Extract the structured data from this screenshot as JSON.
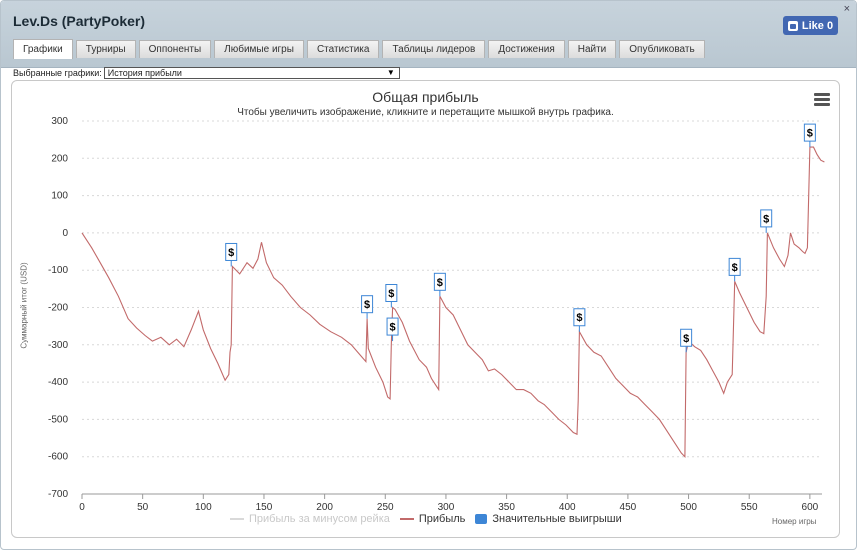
{
  "window": {
    "title": "Lev.Ds (PartyPoker)",
    "close_label": "×",
    "like_label": "Like 0"
  },
  "tabs": [
    {
      "label": "Графики",
      "active": true
    },
    {
      "label": "Турниры"
    },
    {
      "label": "Оппоненты"
    },
    {
      "label": "Любимые игры"
    },
    {
      "label": "Статистика"
    },
    {
      "label": "Таблицы лидеров"
    },
    {
      "label": "Достижения"
    },
    {
      "label": "Найти"
    },
    {
      "label": "Опубликовать"
    }
  ],
  "selector": {
    "label": "Выбранные графики:",
    "value": "История прибыли"
  },
  "chart": {
    "title": "Общая прибыль",
    "subtitle": "Чтобы увеличить изображение, кликните и перетащите мышкой внутрь графика.",
    "ylabel": "Суммарный итог (USD)",
    "xlabel": "Номер игры",
    "legend": [
      {
        "name": "Прибыль за минусом рейка",
        "visible": false
      },
      {
        "name": "Прибыль",
        "visible": true
      },
      {
        "name": "Значительные выигрыши",
        "visible": true
      }
    ],
    "flag_text": "$"
  },
  "chart_data": {
    "type": "line",
    "xlim": [
      0,
      610
    ],
    "ylim": [
      -700,
      300
    ],
    "x_ticks": [
      0,
      50,
      100,
      150,
      200,
      250,
      300,
      350,
      400,
      450,
      500,
      550,
      600
    ],
    "y_ticks": [
      -700,
      -600,
      -500,
      -400,
      -300,
      -200,
      -100,
      0,
      100,
      200,
      300
    ],
    "series": [
      {
        "name": "Прибыль",
        "color": "#c26a6a",
        "points": [
          [
            0,
            0
          ],
          [
            8,
            -40
          ],
          [
            15,
            -80
          ],
          [
            22,
            -120
          ],
          [
            30,
            -170
          ],
          [
            38,
            -230
          ],
          [
            45,
            -255
          ],
          [
            52,
            -275
          ],
          [
            58,
            -290
          ],
          [
            65,
            -280
          ],
          [
            72,
            -300
          ],
          [
            78,
            -285
          ],
          [
            84,
            -305
          ],
          [
            90,
            -260
          ],
          [
            96,
            -210
          ],
          [
            100,
            -260
          ],
          [
            106,
            -310
          ],
          [
            112,
            -350
          ],
          [
            118,
            -395
          ],
          [
            121,
            -380
          ],
          [
            122,
            -320
          ],
          [
            123,
            -300
          ],
          [
            124,
            -90
          ],
          [
            130,
            -110
          ],
          [
            136,
            -80
          ],
          [
            141,
            -95
          ],
          [
            145,
            -70
          ],
          [
            148,
            -25
          ],
          [
            152,
            -80
          ],
          [
            158,
            -120
          ],
          [
            165,
            -140
          ],
          [
            172,
            -170
          ],
          [
            180,
            -200
          ],
          [
            188,
            -220
          ],
          [
            196,
            -245
          ],
          [
            205,
            -265
          ],
          [
            214,
            -280
          ],
          [
            222,
            -300
          ],
          [
            230,
            -330
          ],
          [
            234,
            -345
          ],
          [
            235,
            -230
          ],
          [
            236,
            -310
          ],
          [
            242,
            -360
          ],
          [
            248,
            -400
          ],
          [
            252,
            -440
          ],
          [
            254,
            -445
          ],
          [
            255,
            -300
          ],
          [
            256,
            -200
          ],
          [
            258,
            -205
          ],
          [
            264,
            -240
          ],
          [
            270,
            -290
          ],
          [
            278,
            -340
          ],
          [
            284,
            -360
          ],
          [
            288,
            -390
          ],
          [
            292,
            -410
          ],
          [
            294,
            -420
          ],
          [
            295,
            -170
          ],
          [
            300,
            -200
          ],
          [
            306,
            -220
          ],
          [
            312,
            -260
          ],
          [
            318,
            -300
          ],
          [
            324,
            -320
          ],
          [
            330,
            -340
          ],
          [
            335,
            -370
          ],
          [
            340,
            -365
          ],
          [
            346,
            -380
          ],
          [
            352,
            -400
          ],
          [
            358,
            -420
          ],
          [
            364,
            -420
          ],
          [
            370,
            -430
          ],
          [
            376,
            -450
          ],
          [
            381,
            -460
          ],
          [
            387,
            -480
          ],
          [
            393,
            -500
          ],
          [
            399,
            -515
          ],
          [
            405,
            -535
          ],
          [
            408,
            -540
          ],
          [
            409,
            -450
          ],
          [
            410,
            -265
          ],
          [
            416,
            -300
          ],
          [
            422,
            -320
          ],
          [
            428,
            -330
          ],
          [
            434,
            -360
          ],
          [
            440,
            -390
          ],
          [
            446,
            -410
          ],
          [
            452,
            -430
          ],
          [
            458,
            -440
          ],
          [
            464,
            -460
          ],
          [
            470,
            -480
          ],
          [
            476,
            -500
          ],
          [
            482,
            -530
          ],
          [
            488,
            -560
          ],
          [
            494,
            -590
          ],
          [
            497,
            -600
          ],
          [
            498,
            -320
          ],
          [
            500,
            -290
          ],
          [
            505,
            -305
          ],
          [
            510,
            -315
          ],
          [
            515,
            -340
          ],
          [
            520,
            -370
          ],
          [
            525,
            -400
          ],
          [
            529,
            -430
          ],
          [
            532,
            -400
          ],
          [
            536,
            -380
          ],
          [
            538,
            -130
          ],
          [
            542,
            -160
          ],
          [
            548,
            -200
          ],
          [
            554,
            -240
          ],
          [
            559,
            -265
          ],
          [
            562,
            -270
          ],
          [
            564,
            -170
          ],
          [
            565,
            0
          ],
          [
            570,
            -40
          ],
          [
            575,
            -70
          ],
          [
            579,
            -90
          ],
          [
            582,
            -60
          ],
          [
            584,
            0
          ],
          [
            587,
            -30
          ],
          [
            591,
            -40
          ],
          [
            594,
            -50
          ],
          [
            596,
            -55
          ],
          [
            598,
            -40
          ],
          [
            600,
            230
          ],
          [
            603,
            230
          ],
          [
            606,
            210
          ],
          [
            609,
            195
          ],
          [
            612,
            190
          ]
        ]
      }
    ],
    "big_wins_x": [
      123,
      235,
      255,
      256,
      295,
      410,
      498,
      538,
      564,
      600
    ]
  }
}
